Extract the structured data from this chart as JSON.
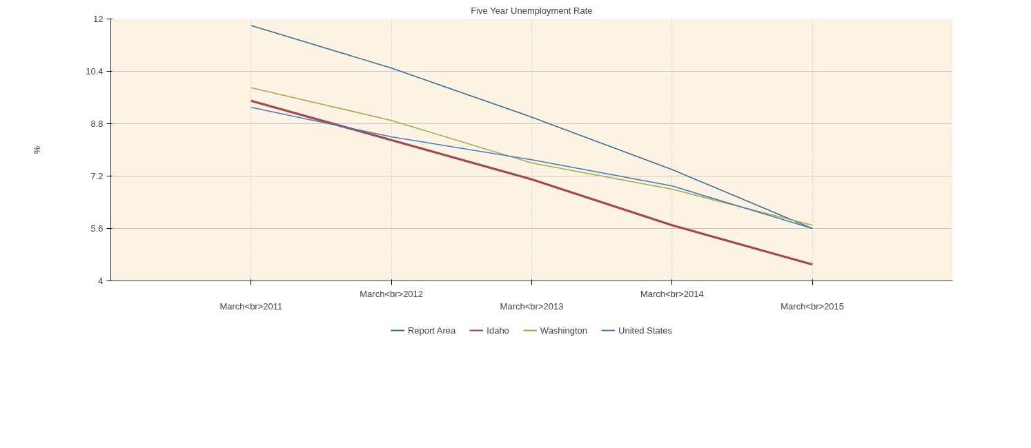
{
  "chart_data": {
    "type": "line",
    "title": "Five Year Unemployment Rate",
    "ylabel": "%",
    "categories": [
      "March<br>2011",
      "March<br>2012",
      "March<br>2013",
      "March<br>2014",
      "March<br>2015"
    ],
    "series": [
      {
        "name": "Report Area",
        "color": "#3b6f95",
        "values": [
          11.8,
          10.5,
          9.0,
          7.4,
          5.6
        ]
      },
      {
        "name": "Idaho",
        "color": "#a4474b",
        "values": [
          9.5,
          8.3,
          7.1,
          5.7,
          4.5
        ]
      },
      {
        "name": "Washington",
        "color": "#9bb04a",
        "values": [
          9.9,
          8.9,
          7.6,
          6.8,
          5.7
        ]
      },
      {
        "name": "United States",
        "color": "#4a7ab8",
        "values": [
          9.3,
          8.4,
          7.7,
          6.9,
          5.6
        ]
      }
    ],
    "ylim": [
      4,
      12
    ],
    "yticks": [
      4,
      5.6,
      7.2,
      8.8,
      10.4,
      12
    ],
    "grid": true,
    "legend": "bottom",
    "marker": "none",
    "line_style": "solid"
  }
}
